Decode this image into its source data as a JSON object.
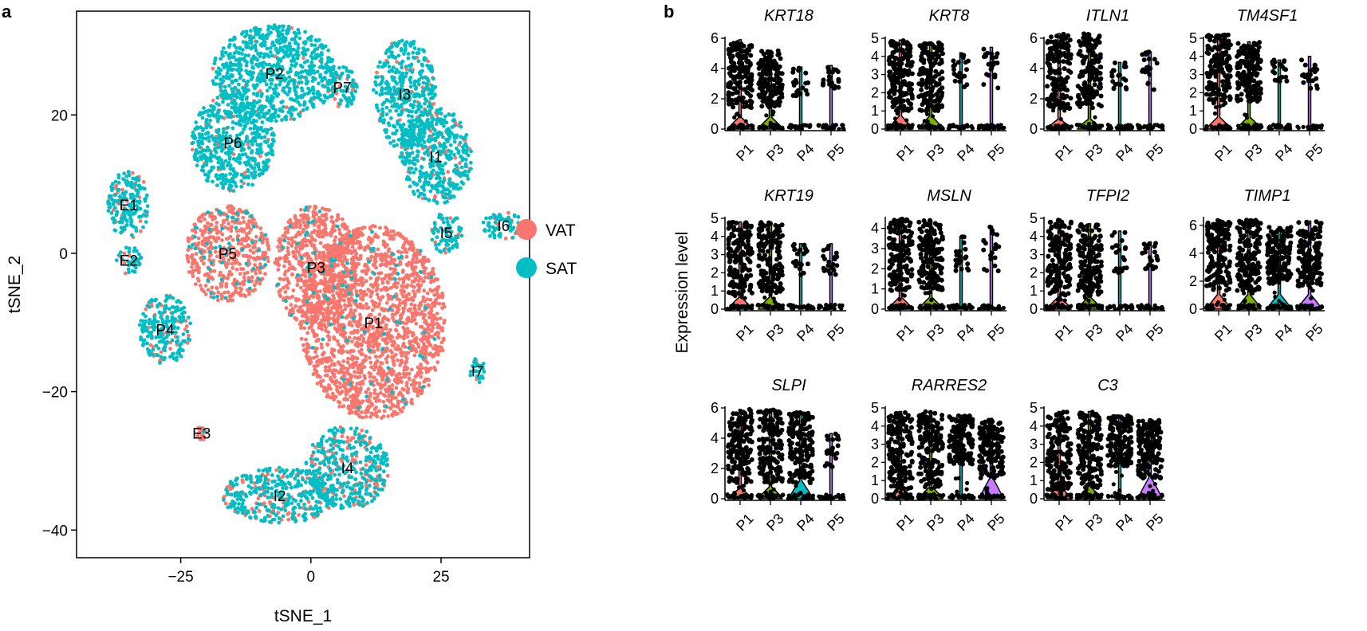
{
  "panel_a_letter": "a",
  "panel_b_letter": "b",
  "chart_data": [
    {
      "type": "scatter",
      "panel": "a",
      "title": "",
      "xlabel": "tSNE_1",
      "ylabel": "tSNE_2",
      "xlim": [
        -45,
        42
      ],
      "ylim": [
        -44,
        35
      ],
      "xticks": [
        -25,
        0,
        25
      ],
      "yticks": [
        20,
        0,
        -20,
        -40
      ],
      "grid": false,
      "legend": {
        "placement": "right",
        "entries": [
          {
            "name": "VAT",
            "color": "#f8766d"
          },
          {
            "name": "SAT",
            "color": "#00bfc4"
          }
        ]
      },
      "series": [
        {
          "name": "VAT",
          "color": "#f8766d"
        },
        {
          "name": "SAT",
          "color": "#00bfc4"
        }
      ],
      "clusters": [
        {
          "label": "P1",
          "x": 12,
          "y": -10,
          "rx": 14,
          "ry": 14,
          "vat": 0.97
        },
        {
          "label": "P3",
          "x": 1,
          "y": -2,
          "rx": 8,
          "ry": 9,
          "vat": 0.95
        },
        {
          "label": "P5",
          "x": -16,
          "y": 0,
          "rx": 8,
          "ry": 7,
          "vat": 0.9
        },
        {
          "label": "P2",
          "x": -7,
          "y": 26,
          "rx": 12,
          "ry": 7,
          "vat": 0.05
        },
        {
          "label": "P6",
          "x": -15,
          "y": 16,
          "rx": 8,
          "ry": 7,
          "vat": 0.07
        },
        {
          "label": "P7",
          "x": 6,
          "y": 24,
          "rx": 3,
          "ry": 3,
          "vat": 0.3
        },
        {
          "label": "I3",
          "x": 18,
          "y": 23,
          "rx": 6,
          "ry": 8,
          "vat": 0.12
        },
        {
          "label": "I1",
          "x": 24,
          "y": 14,
          "rx": 7,
          "ry": 7,
          "vat": 0.15
        },
        {
          "label": "I5",
          "x": 26,
          "y": 3,
          "rx": 3,
          "ry": 3,
          "vat": 0.25
        },
        {
          "label": "I6",
          "x": 37,
          "y": 4,
          "rx": 4,
          "ry": 2,
          "vat": 0.1
        },
        {
          "label": "E1",
          "x": -35,
          "y": 7,
          "rx": 4,
          "ry": 5,
          "vat": 0.15
        },
        {
          "label": "E2",
          "x": -35,
          "y": -1,
          "rx": 2.5,
          "ry": 2,
          "vat": 0.2
        },
        {
          "label": "P4",
          "x": -28,
          "y": -11,
          "rx": 5,
          "ry": 5,
          "vat": 0.2
        },
        {
          "label": "I7",
          "x": 32,
          "y": -17,
          "rx": 1.5,
          "ry": 2,
          "vat": 0.2
        },
        {
          "label": "E3",
          "x": -21,
          "y": -26,
          "rx": 1,
          "ry": 1,
          "vat": 0.9
        },
        {
          "label": "I4",
          "x": 7,
          "y": -31,
          "rx": 8,
          "ry": 6,
          "vat": 0.3
        },
        {
          "label": "I2",
          "x": -6,
          "y": -35,
          "rx": 11,
          "ry": 4,
          "vat": 0.25
        }
      ]
    },
    {
      "type": "violin",
      "panel": "b",
      "ylabel": "Expression level",
      "categories": [
        "P1",
        "P3",
        "P4",
        "P5"
      ],
      "category_colors": [
        "#f8766d",
        "#7cae00",
        "#00bfc4",
        "#c77cff"
      ],
      "genes": [
        {
          "name": "KRT18",
          "ymax": 6,
          "yticks": [
            0,
            2,
            4,
            6
          ],
          "max": [
            5.9,
            5.2,
            4.1,
            4.2
          ],
          "base": [
            0.6,
            0.6,
            0,
            0
          ],
          "low": [
            1.4,
            1.5,
            2.2,
            2.3
          ]
        },
        {
          "name": "KRT8",
          "ymax": 5,
          "yticks": [
            0,
            1,
            2,
            3,
            4,
            5
          ],
          "max": [
            4.9,
            4.8,
            4.2,
            4.5
          ],
          "base": [
            0.55,
            0.55,
            0,
            0
          ],
          "low": [
            1.0,
            1.0,
            2.2,
            2.2
          ]
        },
        {
          "name": "ITLN1",
          "ymax": 6,
          "yticks": [
            0,
            2,
            4,
            6
          ],
          "max": [
            6.3,
            6.3,
            4.4,
            5.1
          ],
          "base": [
            0.5,
            0.5,
            0,
            0
          ],
          "low": [
            1.3,
            1.4,
            2.6,
            2.6
          ]
        },
        {
          "name": "TM4SF1",
          "ymax": 5,
          "yticks": [
            0,
            1,
            2,
            3,
            4,
            5
          ],
          "max": [
            5.2,
            4.8,
            3.8,
            4.0
          ],
          "base": [
            0.5,
            0.5,
            0,
            0
          ],
          "low": [
            1.4,
            1.5,
            2.6,
            2.2
          ]
        },
        {
          "name": "KRT19",
          "ymax": 5,
          "yticks": [
            0,
            1,
            2,
            3,
            4,
            5
          ],
          "max": [
            4.8,
            4.8,
            3.6,
            3.6
          ],
          "base": [
            0.5,
            0.5,
            0,
            0
          ],
          "low": [
            0.8,
            0.9,
            1.7,
            1.9
          ]
        },
        {
          "name": "MSLN",
          "ymax": 4.5,
          "yticks": [
            0,
            1,
            2,
            3,
            4
          ],
          "max": [
            4.5,
            4.4,
            3.6,
            4.1
          ],
          "base": [
            0.45,
            0.45,
            0,
            0
          ],
          "low": [
            0.9,
            0.9,
            1.8,
            1.8
          ]
        },
        {
          "name": "TFPI2",
          "ymax": 5,
          "yticks": [
            0,
            1,
            2,
            3,
            4,
            5
          ],
          "max": [
            4.9,
            4.7,
            4.3,
            3.7
          ],
          "base": [
            0.5,
            0.5,
            0,
            0
          ],
          "low": [
            0.7,
            0.8,
            2.0,
            2.2
          ]
        },
        {
          "name": "TIMP1",
          "ymax": 6.5,
          "yticks": [
            0,
            2,
            4,
            6
          ],
          "max": [
            6.4,
            6.4,
            5.9,
            6.3
          ],
          "base": [
            0.8,
            0.8,
            0.8,
            0.8
          ],
          "low": [
            1.3,
            1.3,
            1.8,
            1.6
          ]
        },
        {
          "name": "SLPI",
          "ymax": 6,
          "yticks": [
            0,
            2,
            4,
            6
          ],
          "max": [
            5.9,
            5.9,
            5.7,
            4.3
          ],
          "base": [
            0.5,
            0.6,
            0.9,
            0
          ],
          "low": [
            1.0,
            1.1,
            1.0,
            2.1
          ]
        },
        {
          "name": "RARRES2",
          "ymax": 5,
          "yticks": [
            0,
            1,
            2,
            3,
            4,
            5
          ],
          "max": [
            4.8,
            4.8,
            4.6,
            4.4
          ],
          "base": [
            0.5,
            0.5,
            0,
            0.9
          ],
          "low": [
            0.5,
            0.6,
            1.9,
            1.0
          ]
        },
        {
          "name": "C3",
          "ymax": 5,
          "yticks": [
            0,
            1,
            2,
            3,
            4,
            5
          ],
          "max": [
            4.8,
            4.8,
            4.6,
            4.4
          ],
          "base": [
            0.5,
            0.5,
            0,
            0.9
          ],
          "low": [
            0.5,
            0.6,
            1.8,
            1.1
          ]
        }
      ]
    }
  ]
}
